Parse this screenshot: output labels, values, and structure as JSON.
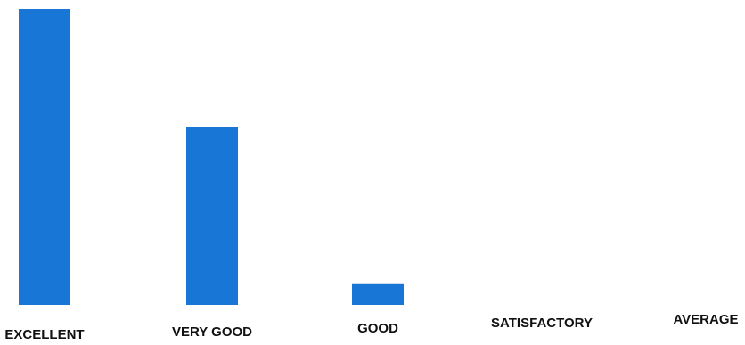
{
  "chart_data": {
    "type": "bar",
    "categories": [
      "EXCELLENT",
      "VERY GOOD",
      "GOOD",
      "SATISFACTORY",
      "AVERAGE"
    ],
    "values": [
      100,
      60,
      7,
      0,
      0
    ],
    "title": "",
    "xlabel": "",
    "ylabel": "",
    "ylim": [
      0,
      100
    ],
    "grid": false,
    "legend": "none",
    "bar_color": "#1877D6"
  }
}
